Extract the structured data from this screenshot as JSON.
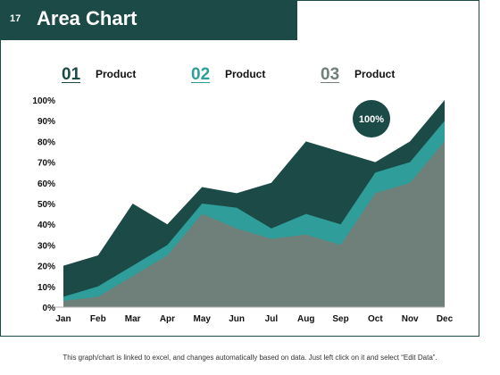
{
  "slide": {
    "number": "17",
    "title": "Area Chart"
  },
  "legend": [
    {
      "num": "01",
      "label": "Product",
      "color": "#1b4a47"
    },
    {
      "num": "02",
      "label": "Product",
      "color": "#2f9d9a"
    },
    {
      "num": "03",
      "label": "Product",
      "color": "#6e8079"
    }
  ],
  "colors": {
    "product_01": "#1b4a47",
    "product_02": "#2f9d9a",
    "product_03": "#6e8079"
  },
  "chart_data": {
    "type": "area",
    "categories": [
      "Jan",
      "Feb",
      "Mar",
      "Apr",
      "May",
      "Jun",
      "Jul",
      "Aug",
      "Sep",
      "Oct",
      "Nov",
      "Dec"
    ],
    "series": [
      {
        "name": "Product",
        "values": [
          20,
          25,
          50,
          40,
          58,
          55,
          60,
          80,
          75,
          70,
          80,
          100
        ]
      },
      {
        "name": "Product",
        "values": [
          5,
          10,
          20,
          30,
          50,
          48,
          38,
          45,
          40,
          65,
          70,
          90
        ]
      },
      {
        "name": "Product",
        "values": [
          3,
          5,
          15,
          25,
          45,
          38,
          33,
          35,
          30,
          55,
          60,
          80
        ]
      }
    ],
    "yticks": [
      "0%",
      "10%",
      "20%",
      "30%",
      "40%",
      "50%",
      "60%",
      "70%",
      "80%",
      "90%",
      "100%"
    ],
    "ylim": [
      0,
      100
    ],
    "annotation": "100%",
    "grid": false,
    "legend_position": "top"
  },
  "footer": "This graph/chart is linked to excel, and changes automatically based on data. Just left click on it and select “Edit Data”."
}
